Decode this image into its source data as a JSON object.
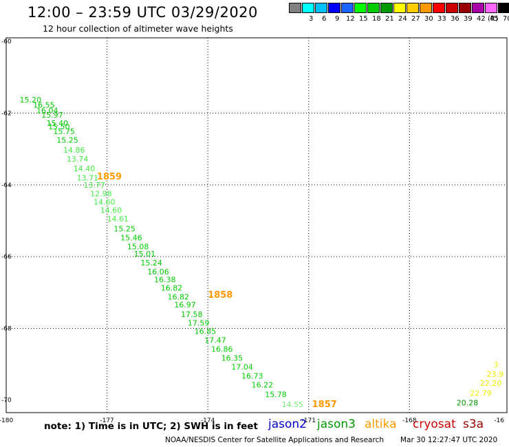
{
  "header": {
    "title": "12:00 – 23:59 UTC 03/29/2020",
    "subtitle": "12 hour collection of altimeter wave heights"
  },
  "color_scale": {
    "unit_label": "(ft)",
    "levels": [
      {
        "label": "",
        "color": "#808080"
      },
      {
        "label": "3",
        "color": "#00ffff"
      },
      {
        "label": "6",
        "color": "#00bfff"
      },
      {
        "label": "9",
        "color": "#0000ff"
      },
      {
        "label": "12",
        "color": "#1e64ff"
      },
      {
        "label": "15",
        "color": "#00ff00"
      },
      {
        "label": "18",
        "color": "#00cc00"
      },
      {
        "label": "21",
        "color": "#009900"
      },
      {
        "label": "24",
        "color": "#ffff00"
      },
      {
        "label": "27",
        "color": "#ffcc00"
      },
      {
        "label": "30",
        "color": "#ff9900"
      },
      {
        "label": "33",
        "color": "#ff0000"
      },
      {
        "label": "36",
        "color": "#cc0000"
      },
      {
        "label": "39",
        "color": "#990000"
      },
      {
        "label": "42",
        "color": "#aa00aa"
      },
      {
        "label": "45",
        "color": "#ff66ff"
      },
      {
        "label": "70",
        "color": "#000000"
      }
    ]
  },
  "map": {
    "lon_ticks": [
      "-180",
      "-177",
      "-174",
      "-171",
      "-168",
      "-16"
    ],
    "lat_ticks": [
      "-60",
      "-62",
      "-64",
      "-66",
      "-68",
      "-70"
    ]
  },
  "observations": [
    {
      "text": "15.20",
      "lon": -179.6,
      "lat": -61.7,
      "color": "#00cc00"
    },
    {
      "text": "16.55",
      "lon": -179.2,
      "lat": -61.85,
      "color": "#00cc00"
    },
    {
      "text": "16.04",
      "lon": -179.1,
      "lat": -62.0,
      "color": "#00cc00"
    },
    {
      "text": "15.97",
      "lon": -178.95,
      "lat": -62.12,
      "color": "#00cc00"
    },
    {
      "text": "15.40",
      "lon": -178.8,
      "lat": -62.35,
      "color": "#00cc00"
    },
    {
      "text": "15.50",
      "lon": -178.75,
      "lat": -62.45,
      "color": "#00cc00"
    },
    {
      "text": "15.75",
      "lon": -178.6,
      "lat": -62.58,
      "color": "#00cc00"
    },
    {
      "text": "15.25",
      "lon": -178.5,
      "lat": -62.82,
      "color": "#00cc00"
    },
    {
      "text": "14.86",
      "lon": -178.3,
      "lat": -63.1,
      "color": "#44ee44"
    },
    {
      "text": "13.74",
      "lon": -178.2,
      "lat": -63.35,
      "color": "#44ee44"
    },
    {
      "text": "14.40",
      "lon": -178.0,
      "lat": -63.62,
      "color": "#44ee44"
    },
    {
      "text": "13.71",
      "lon": -177.9,
      "lat": -63.88,
      "color": "#44ee44"
    },
    {
      "text": "13.77",
      "lon": -177.7,
      "lat": -64.08,
      "color": "#44ee44"
    },
    {
      "text": "12.98",
      "lon": -177.5,
      "lat": -64.32,
      "color": "#44ee44"
    },
    {
      "text": "14.60",
      "lon": -177.4,
      "lat": -64.55,
      "color": "#44ee44"
    },
    {
      "text": "14.60",
      "lon": -177.2,
      "lat": -64.78,
      "color": "#44ee44"
    },
    {
      "text": "14.61",
      "lon": -177.0,
      "lat": -65.02,
      "color": "#44ee44"
    },
    {
      "text": "15.25",
      "lon": -176.8,
      "lat": -65.3,
      "color": "#00cc00"
    },
    {
      "text": "15.46",
      "lon": -176.6,
      "lat": -65.55,
      "color": "#00cc00"
    },
    {
      "text": "15.08",
      "lon": -176.4,
      "lat": -65.8,
      "color": "#00cc00"
    },
    {
      "text": "15.01",
      "lon": -176.2,
      "lat": -66.0,
      "color": "#00cc00"
    },
    {
      "text": "15.24",
      "lon": -176.0,
      "lat": -66.25,
      "color": "#00cc00"
    },
    {
      "text": "16.06",
      "lon": -175.8,
      "lat": -66.5,
      "color": "#00cc00"
    },
    {
      "text": "16.38",
      "lon": -175.6,
      "lat": -66.72,
      "color": "#00cc00"
    },
    {
      "text": "16.82",
      "lon": -175.4,
      "lat": -66.95,
      "color": "#00cc00"
    },
    {
      "text": "16.82",
      "lon": -175.2,
      "lat": -67.2,
      "color": "#00cc00"
    },
    {
      "text": "16.97",
      "lon": -175.0,
      "lat": -67.42,
      "color": "#00cc00"
    },
    {
      "text": "17.58",
      "lon": -174.8,
      "lat": -67.68,
      "color": "#00cc00"
    },
    {
      "text": "17.59",
      "lon": -174.6,
      "lat": -67.92,
      "color": "#00cc00"
    },
    {
      "text": "16.85",
      "lon": -174.4,
      "lat": -68.15,
      "color": "#00cc00"
    },
    {
      "text": "17.47",
      "lon": -174.1,
      "lat": -68.4,
      "color": "#00cc00"
    },
    {
      "text": "16.86",
      "lon": -173.9,
      "lat": -68.65,
      "color": "#00cc00"
    },
    {
      "text": "16.35",
      "lon": -173.6,
      "lat": -68.9,
      "color": "#00cc00"
    },
    {
      "text": "17.04",
      "lon": -173.3,
      "lat": -69.15,
      "color": "#00cc00"
    },
    {
      "text": "16.73",
      "lon": -173.0,
      "lat": -69.4,
      "color": "#00cc00"
    },
    {
      "text": "16.22",
      "lon": -172.7,
      "lat": -69.65,
      "color": "#00cc00"
    },
    {
      "text": "15.78",
      "lon": -172.3,
      "lat": -69.92,
      "color": "#00cc00"
    },
    {
      "text": "14.55",
      "lon": -171.8,
      "lat": -70.2,
      "color": "#77ee77"
    },
    {
      "text": "20.28",
      "lon": -166.6,
      "lat": -70.15,
      "color": "#009900"
    },
    {
      "text": "22.79",
      "lon": -166.2,
      "lat": -69.88,
      "color": "#eeee00"
    },
    {
      "text": "22.20",
      "lon": -165.9,
      "lat": -69.6,
      "color": "#eeee00"
    },
    {
      "text": "23.9",
      "lon": -165.7,
      "lat": -69.35,
      "color": "#eeee00"
    },
    {
      "text": "3",
      "lon": -165.5,
      "lat": -69.08,
      "color": "#eeee00"
    }
  ],
  "time_labels": [
    {
      "text": "1859",
      "lon": -177.3,
      "lat": -63.85,
      "color": "#ff9900"
    },
    {
      "text": "1858",
      "lon": -174.0,
      "lat": -67.15,
      "color": "#ff9900"
    },
    {
      "text": "1857",
      "lon": -170.9,
      "lat": -70.2,
      "color": "#ff9900"
    }
  ],
  "footer": {
    "note": "note: 1) Time is in UTC; 2) SWH is in feet",
    "satellites": [
      {
        "name": "jason2",
        "color": "#0000cc"
      },
      {
        "name": "jason3",
        "color": "#009900"
      },
      {
        "name": "altika",
        "color": "#ff9900"
      },
      {
        "name": "cryosat",
        "color": "#cc0000"
      },
      {
        "name": "s3a",
        "color": "#990000"
      }
    ],
    "credit": "NOAA/NESDIS Center for Satellite Applications and Research",
    "timestamp": "Mar 30 12:27:47 UTC 2020"
  }
}
